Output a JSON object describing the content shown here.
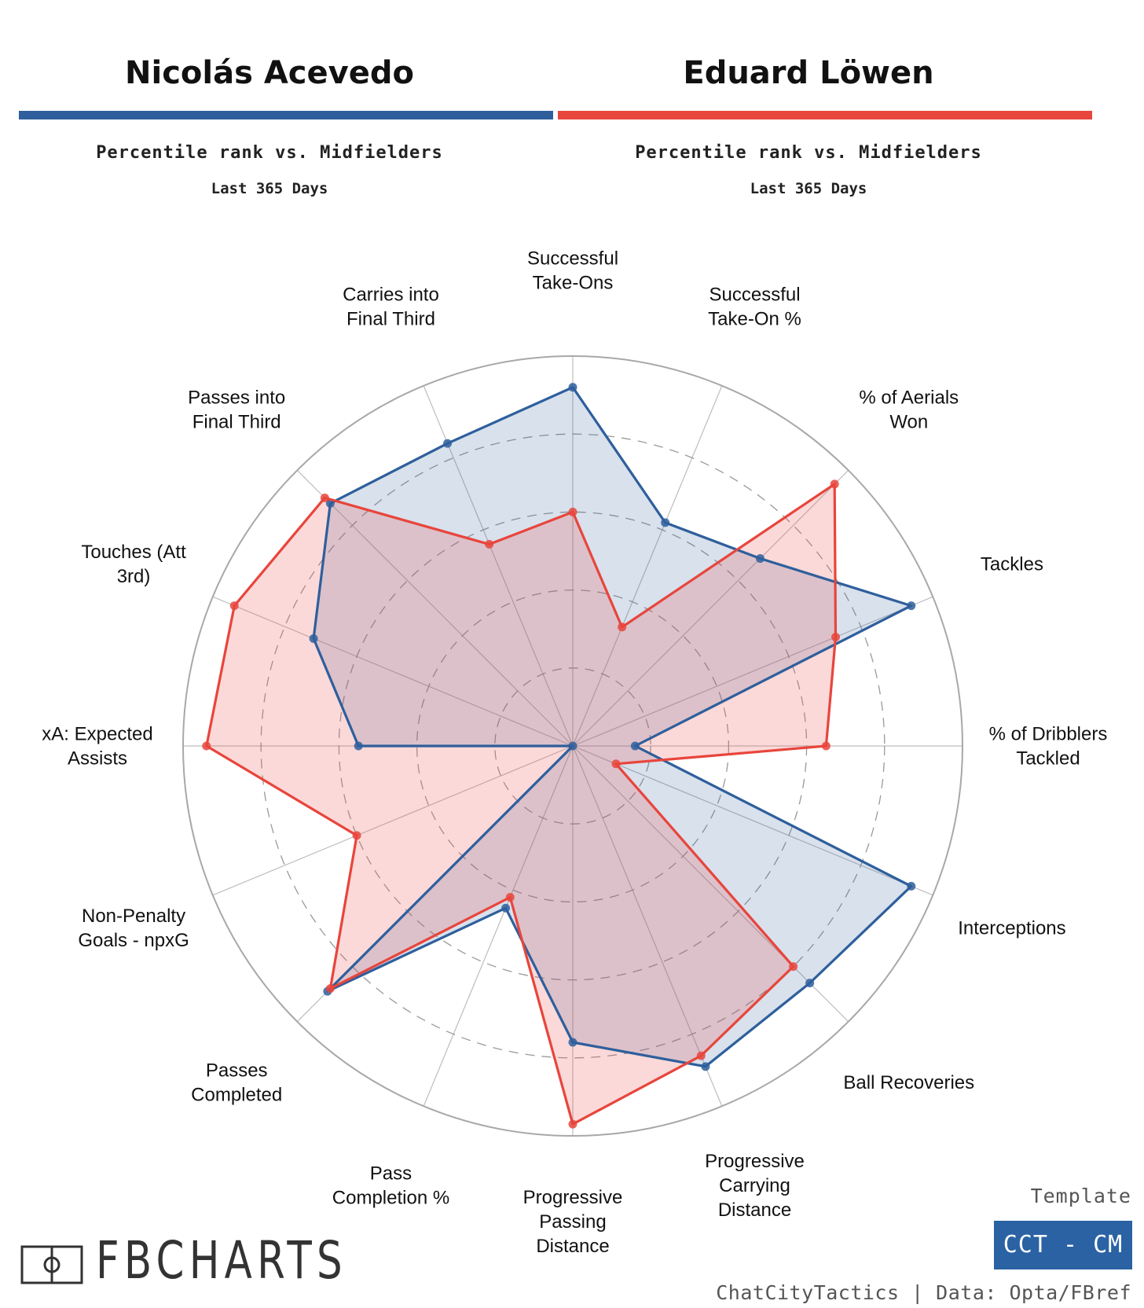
{
  "players": [
    {
      "name": "Nicolás Acevedo",
      "color": "#2e5f9c",
      "subtitle": "Percentile rank vs. Midfielders",
      "period": "Last 365 Days"
    },
    {
      "name": "Eduard Löwen",
      "color": "#e8453c",
      "subtitle": "Percentile rank vs. Midfielders",
      "period": "Last 365 Days"
    }
  ],
  "chart_data": {
    "type": "radar",
    "range": [
      0,
      100
    ],
    "grid_rings": [
      20,
      40,
      60,
      80,
      100
    ],
    "axes": [
      {
        "label": [
          "Successful",
          "Take-Ons"
        ]
      },
      {
        "label": [
          "Successful",
          "Take-On %"
        ]
      },
      {
        "label": [
          "% of Aerials",
          "Won"
        ]
      },
      {
        "label": [
          "Tackles"
        ]
      },
      {
        "label": [
          "% of Dribblers",
          "Tackled"
        ]
      },
      {
        "label": [
          "Interceptions"
        ]
      },
      {
        "label": [
          "Ball Recoveries"
        ]
      },
      {
        "label": [
          "Progressive",
          "Carrying",
          "Distance"
        ]
      },
      {
        "label": [
          "Progressive",
          "Passing",
          "Distance"
        ]
      },
      {
        "label": [
          "Pass",
          "Completion %"
        ]
      },
      {
        "label": [
          "Passes",
          "Completed"
        ]
      },
      {
        "label": [
          "Non-Penalty",
          "Goals - npxG"
        ]
      },
      {
        "label": [
          "xA: Expected",
          "Assists"
        ]
      },
      {
        "label": [
          "Touches (Att",
          "3rd)"
        ]
      },
      {
        "label": [
          "Passes into",
          "Final Third"
        ]
      },
      {
        "label": [
          "Carries into",
          "Final Third"
        ]
      }
    ],
    "series": [
      {
        "name": "Nicolás Acevedo",
        "color": "#2e5f9c",
        "fill": "rgba(46,95,156,0.19)",
        "values": [
          92,
          62,
          68,
          94,
          16,
          94,
          86,
          89,
          76,
          45,
          89,
          0,
          55,
          72,
          88,
          84
        ]
      },
      {
        "name": "Eduard Löwen",
        "color": "#e8453c",
        "fill": "rgba(238,80,80,0.22)",
        "values": [
          60,
          33,
          95,
          73,
          65,
          12,
          80,
          86,
          97,
          42,
          88,
          60,
          94,
          94,
          90,
          56
        ]
      }
    ]
  },
  "footer": {
    "template_label": "Template",
    "template_badge": "CCT - CM",
    "credits": "ChatCityTactics | Data: Opta/FBref",
    "logo_text": "FBCHARTS"
  }
}
